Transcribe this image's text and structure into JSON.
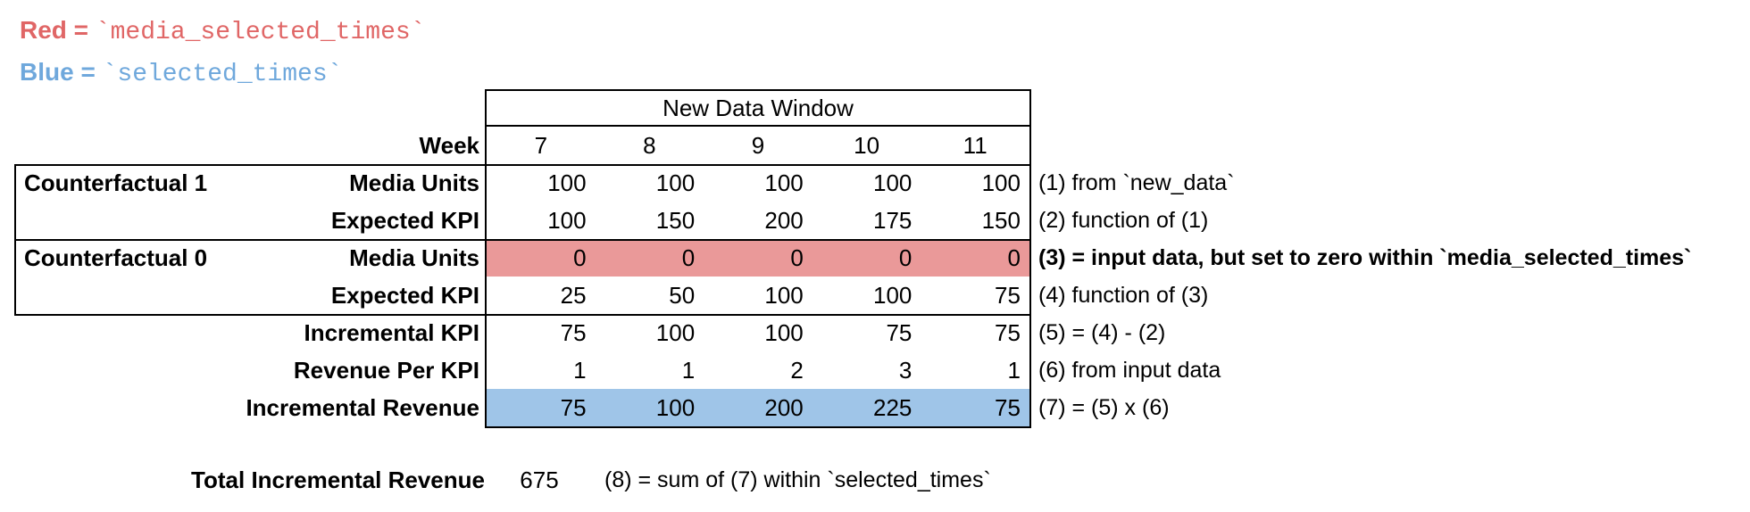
{
  "colors": {
    "red_fill": "#EA9999",
    "blue_fill": "#9FC5E8",
    "red_text": "#E06666",
    "blue_text": "#6FA8DC",
    "border": "#000000"
  },
  "legend": {
    "red": {
      "prefix": "Red = ",
      "code": "`media_selected_times`"
    },
    "blue": {
      "prefix": "Blue = ",
      "code": "`selected_times`"
    }
  },
  "table": {
    "window_title": "New Data Window",
    "week_label": "Week",
    "weeks": [
      "7",
      "8",
      "9",
      "10",
      "11"
    ],
    "groups": [
      "Counterfactual 1",
      "Counterfactual 0"
    ],
    "rows": [
      {
        "label": "Media Units",
        "values": [
          "100",
          "100",
          "100",
          "100",
          "100"
        ],
        "annotation": "(1) from `new_data`"
      },
      {
        "label": "Expected KPI",
        "values": [
          "100",
          "150",
          "200",
          "175",
          "150"
        ],
        "annotation": "(2) function of (1)"
      },
      {
        "label": "Media Units",
        "values": [
          "0",
          "0",
          "0",
          "0",
          "0"
        ],
        "annotation": "(3) = input data, but set to zero within `media_selected_times`",
        "highlight": "red"
      },
      {
        "label": "Expected KPI",
        "values": [
          "25",
          "50",
          "100",
          "100",
          "75"
        ],
        "annotation": "(4) function of (3)"
      },
      {
        "label": "Incremental KPI",
        "values": [
          "75",
          "100",
          "100",
          "75",
          "75"
        ],
        "annotation": "(5) = (4) - (2)"
      },
      {
        "label": "Revenue Per KPI",
        "values": [
          "1",
          "1",
          "2",
          "3",
          "1"
        ],
        "annotation": "(6) from input data"
      },
      {
        "label": "Incremental Revenue",
        "values": [
          "75",
          "100",
          "200",
          "225",
          "75"
        ],
        "annotation": "(7) = (5) x (6)",
        "highlight": "blue"
      }
    ]
  },
  "footer": {
    "label": "Total Incremental Revenue",
    "value": "675",
    "annotation": "(8) = sum of (7) within `selected_times`"
  }
}
